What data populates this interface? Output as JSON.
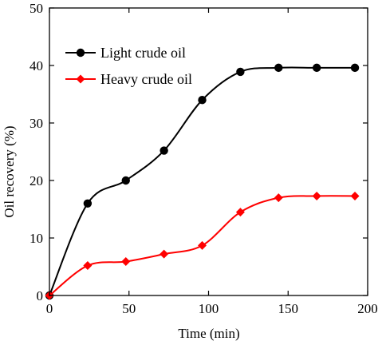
{
  "chart_data": {
    "type": "line",
    "title": "",
    "xlabel": "Time (min)",
    "ylabel": "Oil recovery (%)",
    "xlim": [
      0,
      200
    ],
    "ylim": [
      0,
      50
    ],
    "xticks": [
      0,
      50,
      100,
      150,
      200
    ],
    "yticks": [
      0,
      10,
      20,
      30,
      40,
      50
    ],
    "grid": false,
    "legend_position": "top-left",
    "smooth": true,
    "series": [
      {
        "name": "Light crude oil",
        "color": "#000000",
        "marker": "circle",
        "x": [
          0,
          24,
          48,
          72,
          96,
          120,
          144,
          168,
          192
        ],
        "y": [
          0,
          16,
          20,
          25.2,
          34,
          38.9,
          39.6,
          39.6,
          39.6
        ]
      },
      {
        "name": "Heavy crude oil",
        "color": "#ff0000",
        "marker": "diamond",
        "x": [
          0,
          24,
          48,
          72,
          96,
          120,
          144,
          168,
          192
        ],
        "y": [
          0,
          5.2,
          5.9,
          7.2,
          8.7,
          14.5,
          17,
          17.3,
          17.3
        ]
      }
    ]
  }
}
